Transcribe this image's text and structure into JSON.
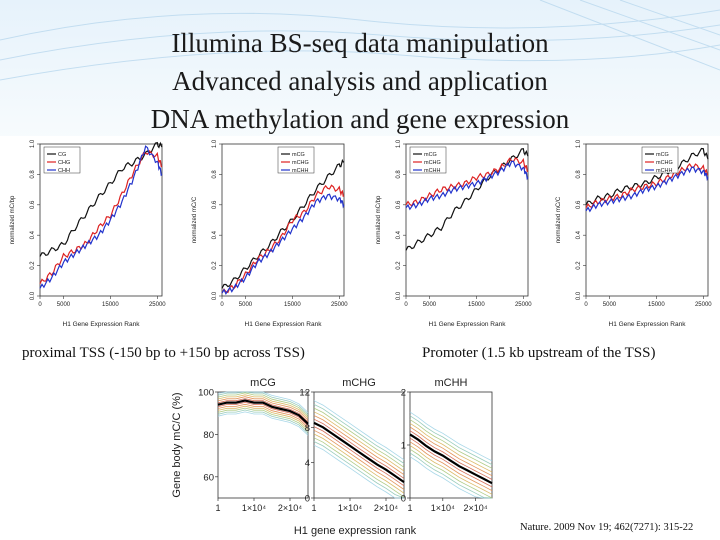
{
  "title": {
    "line1": "Illumina BS-seq data manipulation",
    "line2": "Advanced analysis and application",
    "line3": "DNA methylation and gene expression"
  },
  "labels": {
    "tss": "proximal TSS (-150 bp to +150 bp across TSS)",
    "promoter": "Promoter (1.5 kb upstream of the TSS)"
  },
  "citation": "Nature. 2009 Nov 19; 462(7271): 315-22",
  "colors": {
    "CG": "#111111",
    "CHG": "#dd2222",
    "CHH": "#2233cc"
  },
  "chart_data": [
    {
      "type": "line",
      "xlabel": "H1 Gene Expression Rank",
      "ylabel": "normalized mC/bp",
      "xlim": [
        0,
        26000
      ],
      "ylim": [
        0,
        1
      ],
      "xticks": [
        "0",
        "5000",
        "15000",
        "25000"
      ],
      "yticks": [
        "0.0",
        "0.2",
        "0.4",
        "0.6",
        "0.8",
        "1.0"
      ],
      "legend_position": "top-left",
      "x": [
        0,
        2500,
        5000,
        7500,
        10000,
        12500,
        15000,
        17500,
        20000,
        22500,
        25000,
        26000
      ],
      "series": [
        {
          "name": "CG",
          "values": [
            0.26,
            0.3,
            0.34,
            0.45,
            0.55,
            0.65,
            0.74,
            0.84,
            0.88,
            0.93,
            1.0,
            0.98
          ]
        },
        {
          "name": "CHG",
          "values": [
            0.08,
            0.15,
            0.26,
            0.3,
            0.35,
            0.45,
            0.53,
            0.67,
            0.82,
            0.95,
            0.92,
            0.85
          ]
        },
        {
          "name": "CHH",
          "values": [
            0.05,
            0.12,
            0.22,
            0.28,
            0.34,
            0.4,
            0.5,
            0.62,
            0.78,
            0.98,
            0.88,
            0.8
          ]
        }
      ]
    },
    {
      "type": "line",
      "xlabel": "H1 Gene Expression Rank",
      "ylabel": "normalized mC/C",
      "xlim": [
        0,
        26000
      ],
      "ylim": [
        0,
        1
      ],
      "xticks": [
        "0",
        "5000",
        "15000",
        "25000"
      ],
      "yticks": [
        "0.0",
        "0.2",
        "0.4",
        "0.6",
        "0.8",
        "1.0"
      ],
      "legend_position": "top-right",
      "x": [
        0,
        2500,
        5000,
        7500,
        10000,
        12500,
        15000,
        17500,
        20000,
        22500,
        25000,
        26000
      ],
      "series": [
        {
          "name": "mCG",
          "values": [
            0.05,
            0.1,
            0.18,
            0.26,
            0.33,
            0.42,
            0.5,
            0.6,
            0.7,
            0.78,
            0.86,
            0.88
          ]
        },
        {
          "name": "mCHG",
          "values": [
            0.02,
            0.06,
            0.14,
            0.24,
            0.3,
            0.38,
            0.5,
            0.55,
            0.66,
            0.72,
            0.7,
            0.66
          ]
        },
        {
          "name": "mCHH",
          "values": [
            0.02,
            0.05,
            0.12,
            0.22,
            0.28,
            0.36,
            0.44,
            0.52,
            0.62,
            0.66,
            0.64,
            0.6
          ]
        }
      ]
    },
    {
      "type": "line",
      "xlabel": "H1 Gene Expression Rank",
      "ylabel": "normalized mC/bp",
      "xlim": [
        0,
        26000
      ],
      "ylim": [
        0,
        1
      ],
      "xticks": [
        "0",
        "5000",
        "15000",
        "25000"
      ],
      "yticks": [
        "0.0",
        "0.2",
        "0.4",
        "0.6",
        "0.8",
        "1.0"
      ],
      "legend_position": "top-left",
      "x": [
        0,
        2500,
        5000,
        7500,
        10000,
        12500,
        15000,
        17500,
        20000,
        22500,
        25000,
        26000
      ],
      "series": [
        {
          "name": "mCG",
          "values": [
            0.3,
            0.35,
            0.4,
            0.45,
            0.55,
            0.62,
            0.7,
            0.78,
            0.84,
            0.9,
            0.96,
            0.92
          ]
        },
        {
          "name": "mCHG",
          "values": [
            0.6,
            0.62,
            0.66,
            0.7,
            0.72,
            0.74,
            0.78,
            0.8,
            0.84,
            0.9,
            0.88,
            0.82
          ]
        },
        {
          "name": "mCHH",
          "values": [
            0.58,
            0.6,
            0.64,
            0.66,
            0.7,
            0.72,
            0.74,
            0.78,
            0.82,
            0.88,
            0.84,
            0.78
          ]
        }
      ]
    },
    {
      "type": "line",
      "xlabel": "H1 Gene Expression Rank",
      "ylabel": "normalized mC/C",
      "xlim": [
        0,
        26000
      ],
      "ylim": [
        0,
        1
      ],
      "xticks": [
        "0",
        "5000",
        "15000",
        "25000"
      ],
      "yticks": [
        "0.0",
        "0.2",
        "0.4",
        "0.6",
        "0.8",
        "1.0"
      ],
      "legend_position": "top-right",
      "x": [
        0,
        2500,
        5000,
        7500,
        10000,
        12500,
        15000,
        17500,
        20000,
        22500,
        25000,
        26000
      ],
      "series": [
        {
          "name": "mCG",
          "values": [
            0.6,
            0.64,
            0.66,
            0.7,
            0.72,
            0.74,
            0.78,
            0.82,
            0.86,
            0.92,
            0.96,
            0.9
          ]
        },
        {
          "name": "mCHG",
          "values": [
            0.58,
            0.62,
            0.64,
            0.66,
            0.7,
            0.72,
            0.74,
            0.78,
            0.82,
            0.86,
            0.84,
            0.8
          ]
        },
        {
          "name": "mCHH",
          "values": [
            0.56,
            0.6,
            0.62,
            0.64,
            0.66,
            0.7,
            0.72,
            0.76,
            0.8,
            0.84,
            0.82,
            0.78
          ]
        }
      ]
    },
    {
      "type": "line",
      "ylabel": "Gene body mC/C (%)",
      "xlabel": "H1 gene expression rank",
      "subplots": [
        {
          "title": "mCG",
          "ylim": [
            50,
            100
          ],
          "yticks": [
            "60",
            "80",
            "100"
          ],
          "xticks": [
            "1",
            "1×10⁴",
            "2×10⁴"
          ],
          "x": [
            1,
            2500,
            5000,
            7500,
            10000,
            12500,
            15000,
            17500,
            20000,
            22500,
            25000
          ],
          "median": [
            94,
            95,
            95,
            96,
            95,
            95,
            93,
            92,
            91,
            89,
            85
          ]
        },
        {
          "title": "mCHG",
          "ylim": [
            0,
            12
          ],
          "yticks": [
            "0",
            "4",
            "8",
            "12"
          ],
          "xticks": [
            "1",
            "1×10⁴",
            "2×10⁴"
          ],
          "x": [
            1,
            2500,
            5000,
            7500,
            10000,
            12500,
            15000,
            17500,
            20000,
            22500,
            25000
          ],
          "median": [
            8.5,
            8.0,
            7.3,
            6.6,
            5.9,
            5.2,
            4.5,
            3.8,
            3.2,
            2.5,
            1.8
          ]
        },
        {
          "title": "mCHH",
          "ylim": [
            0,
            2
          ],
          "yticks": [
            "0",
            "1",
            "2"
          ],
          "xticks": [
            "1",
            "1×10⁴",
            "2×10⁴"
          ],
          "x": [
            1,
            2500,
            5000,
            7500,
            10000,
            12500,
            15000,
            17500,
            20000,
            22500,
            25000
          ],
          "median": [
            1.2,
            1.1,
            0.98,
            0.88,
            0.8,
            0.7,
            0.6,
            0.52,
            0.44,
            0.36,
            0.28
          ]
        }
      ]
    }
  ]
}
